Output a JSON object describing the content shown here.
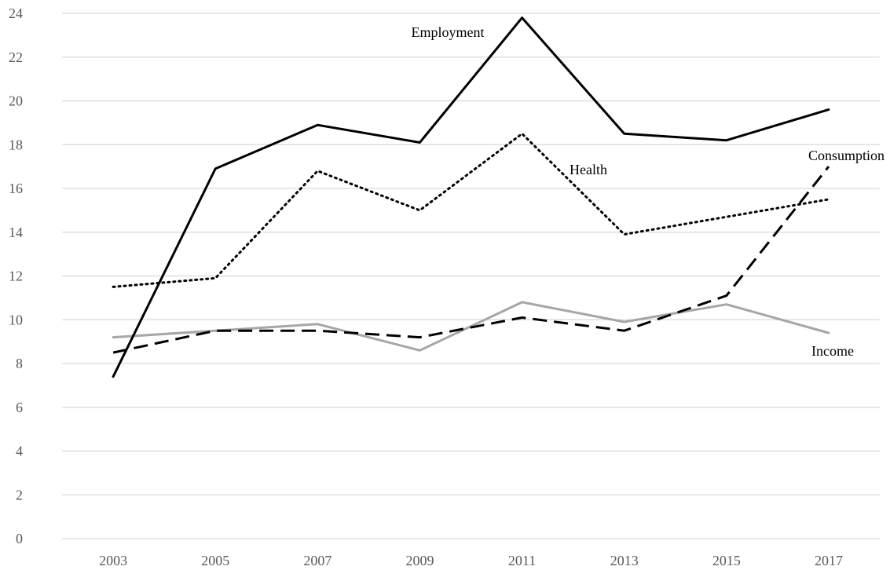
{
  "chart_data": {
    "type": "line",
    "title": "",
    "xlabel": "",
    "ylabel": "",
    "x": [
      "2003",
      "2005",
      "2007",
      "2009",
      "2011",
      "2013",
      "2015",
      "2017"
    ],
    "yticks": [
      "0",
      "2",
      "4",
      "6",
      "8",
      "10",
      "12",
      "14",
      "16",
      "18",
      "20",
      "22",
      "24"
    ],
    "ylim": [
      0,
      24
    ],
    "grid": "horizontal",
    "legend": "none (direct labels on lines)",
    "series": [
      {
        "name": "Employment",
        "values": [
          7.4,
          16.9,
          18.9,
          18.1,
          23.8,
          18.5,
          18.2,
          19.6
        ],
        "color": "#000000",
        "line_style": "solid"
      },
      {
        "name": "Health",
        "values": [
          11.5,
          11.9,
          16.8,
          15.0,
          18.5,
          13.9,
          14.7,
          15.5
        ],
        "color": "#000000",
        "line_style": "dotted"
      },
      {
        "name": "Consumption",
        "values": [
          8.5,
          9.5,
          9.5,
          9.2,
          10.1,
          9.5,
          11.1,
          17.0
        ],
        "color": "#000000",
        "line_style": "dashed"
      },
      {
        "name": "Income",
        "values": [
          9.2,
          9.5,
          9.8,
          8.6,
          10.8,
          9.9,
          10.7,
          9.4
        ],
        "color": "#a6a6a6",
        "line_style": "solid"
      }
    ]
  }
}
